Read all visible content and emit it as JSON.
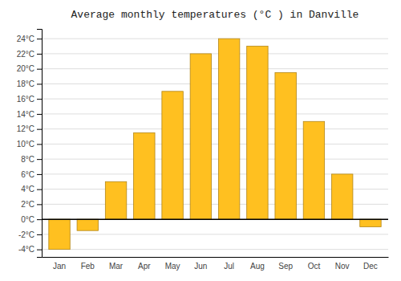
{
  "chart_data": {
    "type": "bar",
    "title": "Average monthly temperatures (°C ) in Danville",
    "categories": [
      "Jan",
      "Feb",
      "Mar",
      "Apr",
      "May",
      "Jun",
      "Jul",
      "Aug",
      "Sep",
      "Oct",
      "Nov",
      "Dec"
    ],
    "values": [
      -4.0,
      -1.5,
      5.0,
      11.5,
      17.0,
      22.0,
      24.0,
      23.0,
      19.5,
      13.0,
      6.0,
      -1.0
    ],
    "color": "#FFC020",
    "ylim": [
      -5,
      25.3
    ],
    "yticks": [
      {
        "value": -4,
        "label": "-4°C"
      },
      {
        "value": -2,
        "label": "-2°C"
      },
      {
        "value": 0,
        "label": "0°C"
      },
      {
        "value": 2,
        "label": "2°C"
      },
      {
        "value": 4,
        "label": "4°C"
      },
      {
        "value": 6,
        "label": "6°C"
      },
      {
        "value": 8,
        "label": "8°C"
      },
      {
        "value": 10,
        "label": "10°C"
      },
      {
        "value": 12,
        "label": "12°C"
      },
      {
        "value": 14,
        "label": "14°C"
      },
      {
        "value": 16,
        "label": "16°C"
      },
      {
        "value": 18,
        "label": "18°C"
      },
      {
        "value": 20,
        "label": "20°C"
      },
      {
        "value": 22,
        "label": "22°C"
      },
      {
        "value": 24,
        "label": "24°C"
      }
    ],
    "grid": true
  }
}
